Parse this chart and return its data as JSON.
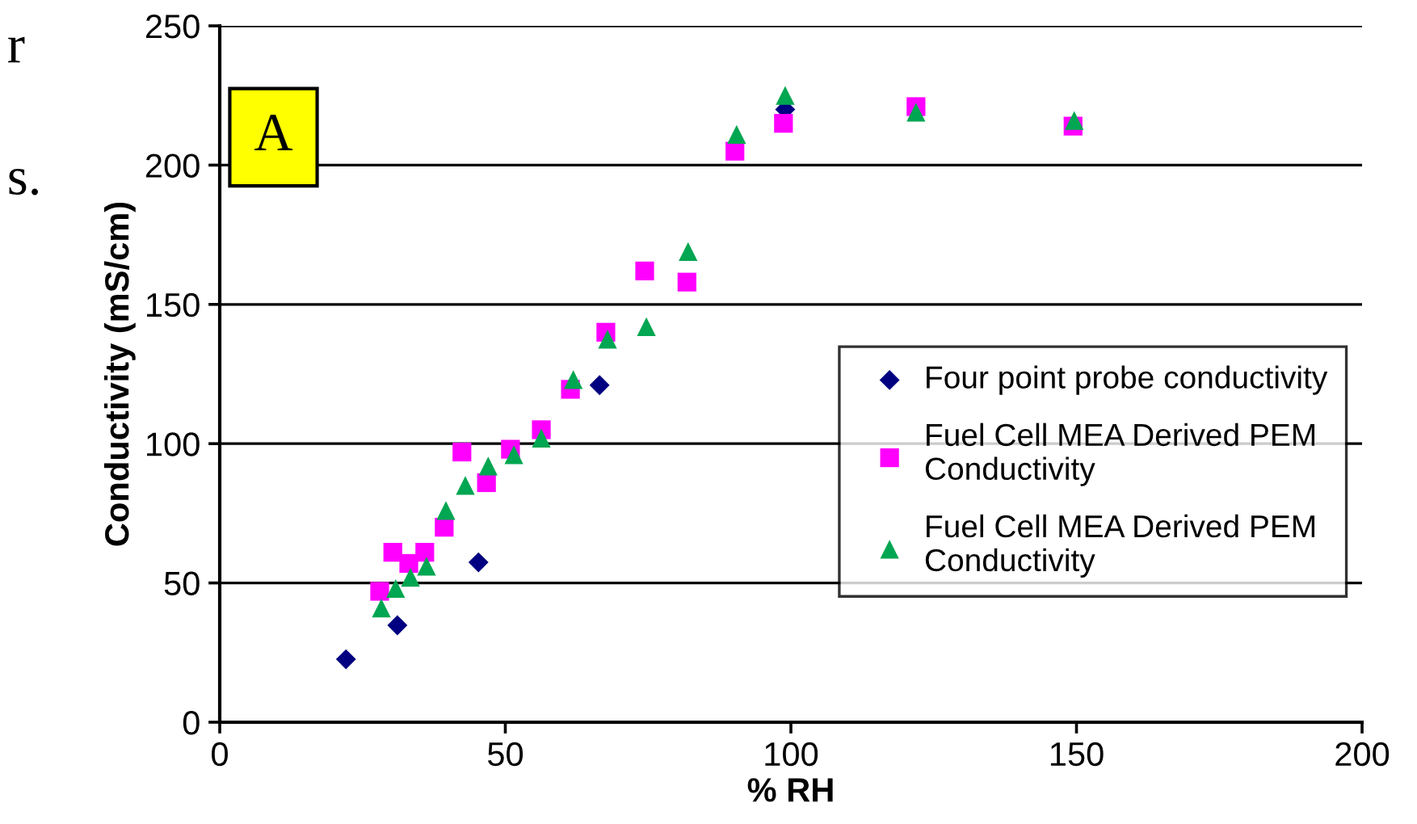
{
  "chart_data": {
    "type": "scatter",
    "xlabel": "% RH",
    "ylabel": "Conductivity (mS/cm)",
    "xlim": [
      0,
      200
    ],
    "xticks": [
      0,
      50,
      100,
      150,
      200
    ],
    "ylim": [
      0,
      250
    ],
    "yticks": [
      0,
      50,
      100,
      150,
      200,
      250
    ],
    "grid": "y",
    "legend": "right",
    "annotations": [
      "A",
      "r",
      "s."
    ],
    "series": [
      {
        "name": "Four point probe conductivity",
        "color": "#000080",
        "marker": "diamond",
        "x": [
          22.1,
          31.1,
          45.3,
          66.5,
          99
        ],
        "values": [
          22.6,
          34.8,
          57.4,
          121,
          220
        ]
      },
      {
        "name": "Fuel Cell MEA Derived PEM\nConductivity",
        "color": "#ff00ff",
        "marker": "square",
        "x": [
          28.0,
          30.3,
          33.1,
          35.9,
          39.3,
          42.4,
          46.7,
          50.9,
          56.3,
          61.4,
          67.6,
          74.4,
          81.8,
          90.2,
          98.7,
          121.9,
          149.4
        ],
        "values": [
          47,
          61,
          57,
          61,
          70,
          97,
          86,
          98,
          105,
          119.5,
          140,
          162,
          158,
          205,
          215,
          221,
          214
        ]
      },
      {
        "name": "Fuel Cell MEA Derived PEM\nConductivity",
        "color": "#00a651",
        "marker": "triangle",
        "x": [
          28.3,
          30.8,
          33.4,
          36.2,
          39.6,
          43,
          47,
          51.5,
          56.3,
          61.9,
          67.9,
          74.7,
          82,
          90.5,
          99,
          121.9,
          149.6
        ],
        "values": [
          41,
          48,
          52,
          56,
          76,
          85,
          92,
          96,
          102,
          123,
          137.5,
          142,
          169,
          211,
          225,
          219,
          216
        ]
      }
    ]
  }
}
